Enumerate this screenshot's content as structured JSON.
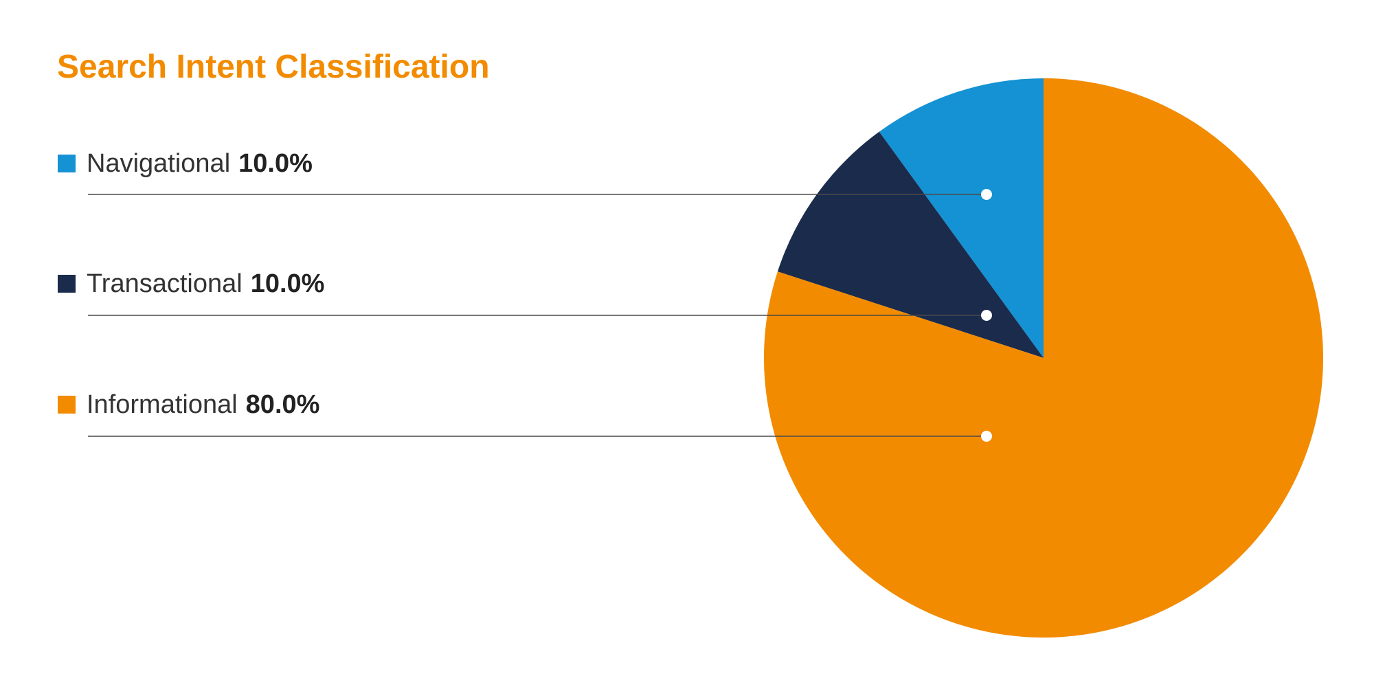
{
  "chart_data": {
    "type": "pie",
    "title": "Search Intent Classification",
    "title_color": "#F28B00",
    "slices": [
      {
        "label": "Navigational",
        "value": 10.0,
        "display": "10.0%",
        "color": "#1592D4"
      },
      {
        "label": "Transactional",
        "value": 10.0,
        "display": "10.0%",
        "color": "#1A2B4C"
      },
      {
        "label": "Informational",
        "value": 80.0,
        "display": "80.0%",
        "color": "#F28B00"
      }
    ],
    "start_angle_deg": 0,
    "direction": "counterclockwise",
    "legend_placement": "left",
    "leader_line_color": "#4A4A4A",
    "leader_dot_color": "#FFFFFF"
  }
}
